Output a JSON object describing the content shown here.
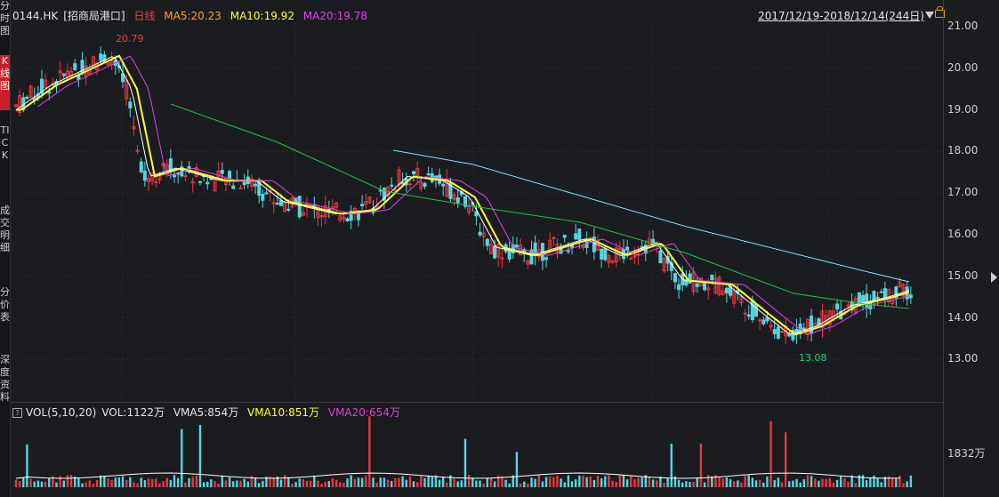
{
  "left_tabs": [
    "分时图",
    "K线图",
    "TICK",
    "成交明细",
    "分价表",
    "深度资料"
  ],
  "active_tab_index": 1,
  "header": {
    "code": "0144.HK",
    "name": "[招商局港口]",
    "period": "日线",
    "ma5": "MA5:20.23",
    "ma10": "MA10:19.92",
    "ma20": "MA20:19.78"
  },
  "range_label": "2017/12/19-2018/12/14(244日)",
  "y_ticks": [
    "21.00",
    "20.00",
    "19.00",
    "18.00",
    "17.00",
    "16.00",
    "15.00",
    "14.00",
    "13.00"
  ],
  "high_label": "20.79",
  "low_label": "13.08",
  "volume": {
    "box": "?",
    "title": "VOL(5,10,20)",
    "vol": "VOL:1122万",
    "vma5": "VMA5:854万",
    "vma10": "VMA10:851万",
    "vma20": "VMA20:654万",
    "tick": "1832万"
  },
  "colors": {
    "up": "#e8383d",
    "down": "#54d6e0",
    "ma5": "#ffffff",
    "ma10": "#ffff33",
    "ma20": "#e040e0",
    "ma60": "#20c040",
    "ma120": "#7fe0ff"
  }
}
